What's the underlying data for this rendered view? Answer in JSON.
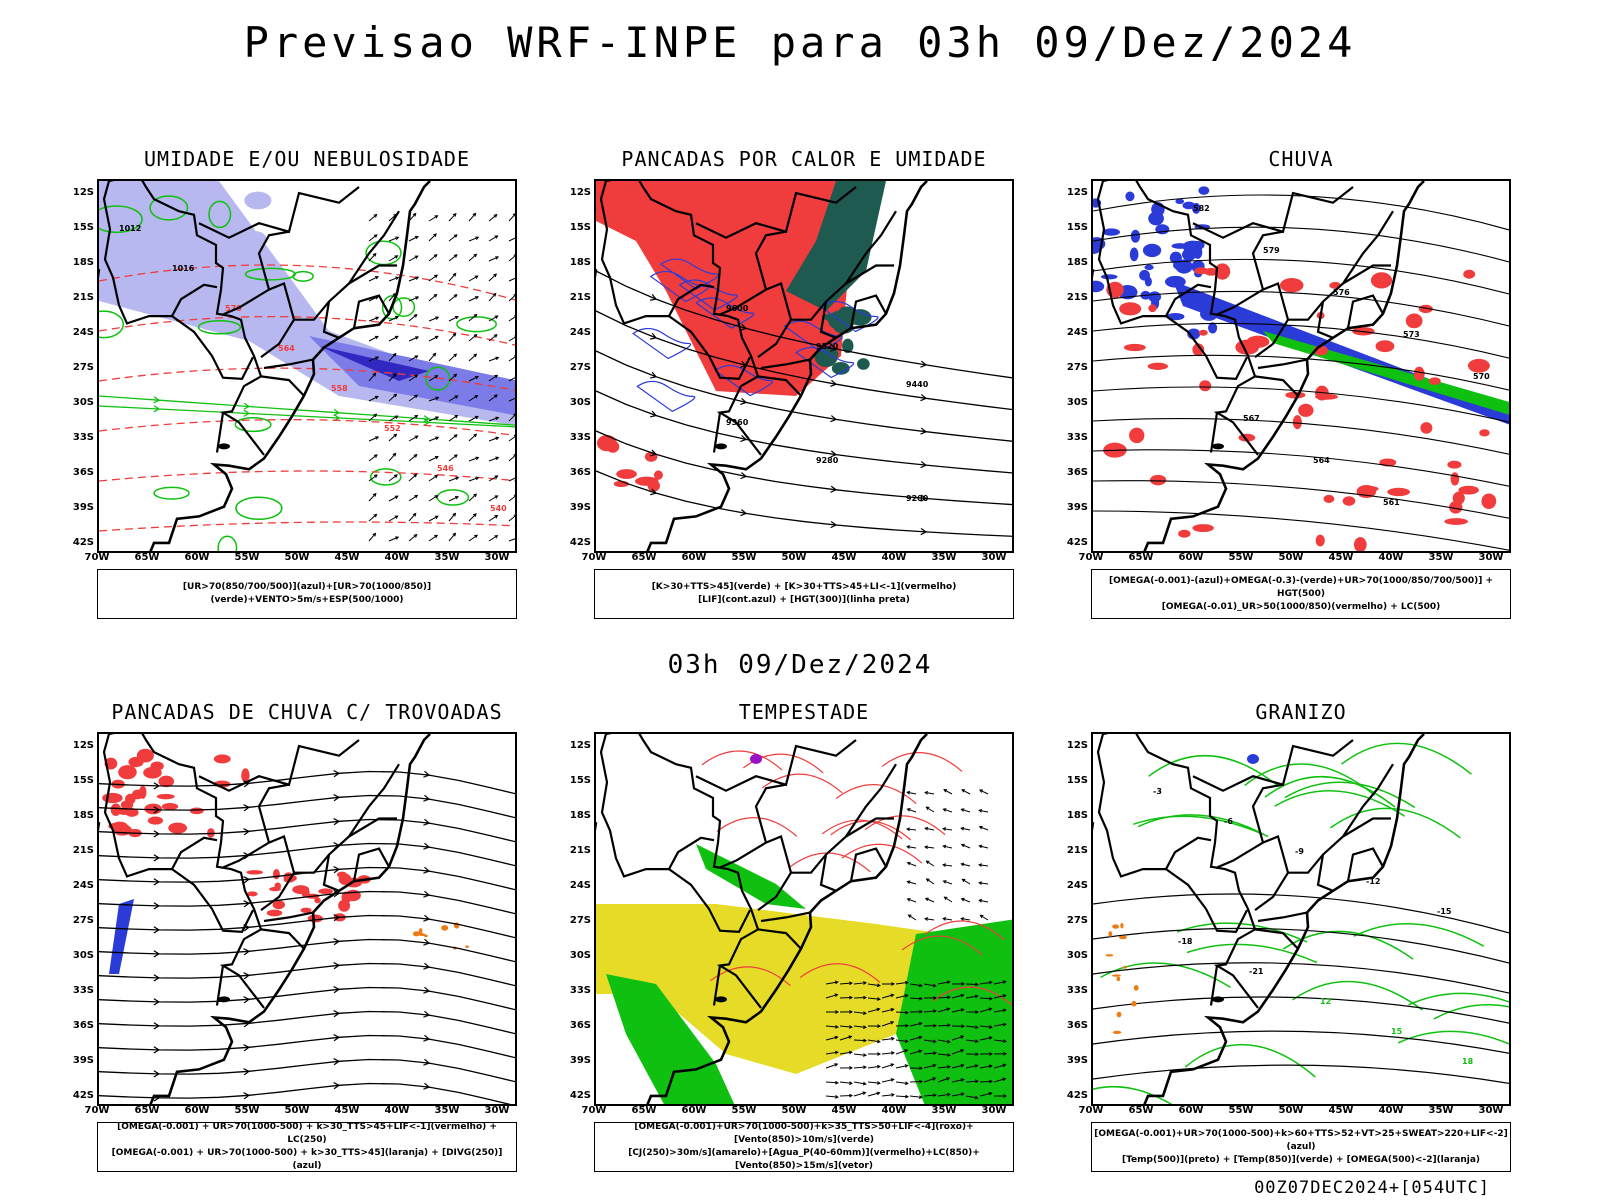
{
  "header": {
    "title": "Previsao WRF-INPE  para 03h 09/Dez/2024",
    "mid_title": "03h 09/Dez/2024",
    "footer": "00Z07DEC2024+[054UTC]"
  },
  "axes": {
    "lat_labels": [
      "12S",
      "15S",
      "18S",
      "21S",
      "24S",
      "27S",
      "30S",
      "33S",
      "36S",
      "39S",
      "42S"
    ],
    "lon_labels": [
      "70W",
      "65W",
      "60W",
      "55W",
      "50W",
      "45W",
      "40W",
      "35W",
      "30W"
    ]
  },
  "panels": [
    {
      "id": "umidade",
      "title": "UMIDADE E/OU NEBULOSIDADE",
      "legend_lines": [
        "[UR>70(850/700/500)](azul)+[UR>70(1000/850)](verde)+VENTO>5m/s+ESP(500/1000)"
      ],
      "contour_labels": [
        "1012",
        "1016",
        "570",
        "564",
        "558",
        "552",
        "546",
        "540"
      ]
    },
    {
      "id": "pancadas-calor",
      "title": "PANCADAS POR CALOR E UMIDADE",
      "legend_lines": [
        "[K>30+TTS>45](verde) + [K>30+TTS>45+LI<-1](vermelho)",
        "[LIF](cont.azul) + [HGT(300)](linha preta)"
      ],
      "contour_labels": [
        "9600",
        "9520",
        "9440",
        "9360",
        "9280",
        "9200"
      ]
    },
    {
      "id": "chuva",
      "title": "CHUVA",
      "legend_lines": [
        "[OMEGA(-0.001)-(azul)+OMEGA(-0.3)-(verde)+UR>70(1000/850/700/500)] + HGT(500)",
        "[OMEGA(-0.01)_UR>50(1000/850)(vermelho) + LC(500)"
      ],
      "contour_labels": [
        "582",
        "579",
        "576",
        "573",
        "570",
        "567",
        "564",
        "561"
      ]
    },
    {
      "id": "trovoadas",
      "title": "PANCADAS DE CHUVA C/ TROVOADAS",
      "legend_lines": [
        "[OMEGA(-0.001) + UR>70(1000-500) + k>30_TTS>45+LIF<-1](vermelho) + LC(250)",
        "[OMEGA(-0.001) + UR>70(1000-500) + k>30_TTS>45](laranja) + [DIVG(250)](azul)"
      ],
      "contour_labels": []
    },
    {
      "id": "tempestade",
      "title": "TEMPESTADE",
      "legend_lines": [
        "[OMEGA(-0.001)+UR>70(1000-500)+k>35_TTS>50+LIF<-4](roxo)+[Vento(850)>10m/s](verde)",
        "[CJ(250)>30m/s](amarelo)+[Agua_P(40-60mm)](vermelho)+LC(850)+[Vento(850)>15m/s](vetor)"
      ],
      "contour_labels": []
    },
    {
      "id": "granizo",
      "title": "GRANIZO",
      "legend_lines": [
        "[OMEGA(-0.001)+UR>70(1000-500)+k>60+TTS>52+VT>25+SWEAT>220+LIF<-2](azul)",
        "[Temp(500)](preto) + [Temp(850)](verde) + [OMEGA(500)<-2](laranja)"
      ],
      "contour_labels": [
        "-3",
        "-6",
        "-9",
        "-12",
        "-15",
        "-18",
        "-21",
        "12",
        "15",
        "18"
      ]
    }
  ],
  "colors": {
    "blue": "#2b3bd8",
    "lightblue": "#b8b8f0",
    "periwinkle": "#7c7ce8",
    "green": "#10c010",
    "red": "#f03c3c",
    "darkteal": "#1e5a50",
    "yellow": "#e6dc28",
    "orange": "#ee7a14",
    "purple": "#9a10c8"
  }
}
